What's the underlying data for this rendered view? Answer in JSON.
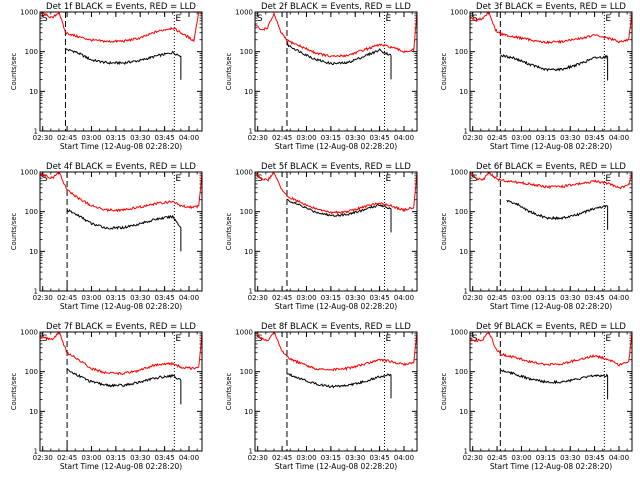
{
  "figure": {
    "title_suffix": " BLACK = Events, RED = LLD",
    "xlabel": "Start Time (12-Aug-08 02:28:20)",
    "ylabel": "Counts/sec",
    "x_tick_labels": [
      "02:30",
      "02:45",
      "03:00",
      "03:15",
      "03:30",
      "03:45",
      "04:00"
    ],
    "y_tick_labels": [
      "1",
      "10",
      "100",
      "1000"
    ],
    "markers": {
      "start": "S",
      "end": "E"
    },
    "colors": {
      "events": "#000000",
      "lld": "#ff0000",
      "axes": "#000000"
    }
  },
  "chart_data": [
    {
      "type": "line",
      "title": "Det 1f",
      "x_range": [
        "02:28:20",
        "04:08:00"
      ],
      "ylim": [
        1,
        1000
      ],
      "y_scale": "log",
      "dashed_line_at": "02:44",
      "dotted_line_at": "03:51",
      "series": [
        {
          "name": "BLACK = Events",
          "x": [
            "02:44",
            "02:50",
            "03:00",
            "03:10",
            "03:20",
            "03:30",
            "03:40",
            "03:50",
            "03:55"
          ],
          "y": [
            115,
            100,
            62,
            52,
            52,
            60,
            78,
            95,
            78
          ]
        },
        {
          "name": "RED = LLD",
          "x": [
            "02:28",
            "02:32",
            "02:36",
            "02:40",
            "02:44",
            "02:50",
            "03:00",
            "03:10",
            "03:20",
            "03:30",
            "03:40",
            "03:50",
            "03:55",
            "04:03",
            "04:06",
            "04:08"
          ],
          "y": [
            1000,
            850,
            700,
            1000,
            300,
            250,
            195,
            180,
            185,
            220,
            320,
            400,
            300,
            190,
            1000,
            1000
          ]
        }
      ]
    },
    {
      "type": "line",
      "title": "Det 2f",
      "x_range": [
        "02:28:20",
        "04:08:00"
      ],
      "ylim": [
        1,
        1000
      ],
      "y_scale": "log",
      "dashed_line_at": "02:48",
      "dotted_line_at": "03:48",
      "series": [
        {
          "name": "BLACK = Events",
          "x": [
            "02:48",
            "02:55",
            "03:05",
            "03:15",
            "03:25",
            "03:35",
            "03:45",
            "03:52"
          ],
          "y": [
            150,
            105,
            65,
            50,
            52,
            75,
            110,
            80
          ]
        },
        {
          "name": "RED = LLD",
          "x": [
            "02:28",
            "02:32",
            "02:36",
            "02:40",
            "02:44",
            "02:48",
            "02:55",
            "03:05",
            "03:15",
            "03:25",
            "03:35",
            "03:45",
            "03:52",
            "04:00",
            "04:06",
            "04:08"
          ],
          "y": [
            500,
            350,
            400,
            900,
            320,
            190,
            145,
            95,
            75,
            80,
            110,
            150,
            130,
            100,
            110,
            1000
          ]
        }
      ]
    },
    {
      "type": "line",
      "title": "Det 3f",
      "x_range": [
        "02:28:20",
        "04:08:00"
      ],
      "ylim": [
        1,
        1000
      ],
      "y_scale": "log",
      "dashed_line_at": "02:47",
      "dotted_line_at": "03:51",
      "series": [
        {
          "name": "BLACK = Events",
          "x": [
            "02:47",
            "02:55",
            "03:05",
            "03:15",
            "03:25",
            "03:35",
            "03:45",
            "03:53"
          ],
          "y": [
            80,
            70,
            48,
            35,
            36,
            48,
            70,
            75
          ]
        },
        {
          "name": "RED = LLD",
          "x": [
            "02:28",
            "02:32",
            "02:36",
            "02:40",
            "02:44",
            "02:47",
            "02:55",
            "03:05",
            "03:15",
            "03:25",
            "03:35",
            "03:45",
            "03:53",
            "04:00",
            "04:06",
            "04:08"
          ],
          "y": [
            800,
            600,
            700,
            1000,
            350,
            280,
            240,
            200,
            170,
            180,
            210,
            260,
            220,
            180,
            200,
            1000
          ]
        }
      ]
    },
    {
      "type": "line",
      "title": "Det 4f",
      "x_range": [
        "02:28:20",
        "04:08:00"
      ],
      "ylim": [
        1,
        1000
      ],
      "y_scale": "log",
      "dashed_line_at": "02:45",
      "dotted_line_at": "03:51",
      "series": [
        {
          "name": "BLACK = Events",
          "x": [
            "02:45",
            "02:52",
            "03:00",
            "03:10",
            "03:20",
            "03:30",
            "03:40",
            "03:50",
            "03:55"
          ],
          "y": [
            110,
            80,
            50,
            38,
            40,
            50,
            65,
            75,
            40
          ]
        },
        {
          "name": "RED = LLD",
          "x": [
            "02:28",
            "02:32",
            "02:36",
            "02:40",
            "02:45",
            "02:52",
            "03:00",
            "03:10",
            "03:20",
            "03:30",
            "03:40",
            "03:50",
            "03:55",
            "04:03",
            "04:06",
            "04:08"
          ],
          "y": [
            900,
            800,
            700,
            1000,
            350,
            220,
            140,
            110,
            110,
            130,
            160,
            180,
            140,
            130,
            140,
            1000
          ]
        }
      ]
    },
    {
      "type": "line",
      "title": "Det 5f",
      "x_range": [
        "02:28:20",
        "04:08:00"
      ],
      "ylim": [
        1,
        1000
      ],
      "y_scale": "log",
      "dashed_line_at": "02:48",
      "dotted_line_at": "03:48",
      "series": [
        {
          "name": "BLACK = Events",
          "x": [
            "02:48",
            "02:55",
            "03:05",
            "03:15",
            "03:25",
            "03:35",
            "03:45",
            "03:52"
          ],
          "y": [
            200,
            150,
            100,
            80,
            85,
            110,
            150,
            120
          ]
        },
        {
          "name": "RED = LLD",
          "x": [
            "02:28",
            "02:32",
            "02:36",
            "02:40",
            "02:44",
            "02:48",
            "02:55",
            "03:05",
            "03:15",
            "03:25",
            "03:35",
            "03:45",
            "03:52",
            "04:00",
            "04:06",
            "04:08"
          ],
          "y": [
            1000,
            700,
            600,
            1000,
            400,
            250,
            180,
            120,
            95,
            100,
            130,
            170,
            140,
            110,
            130,
            1000
          ]
        }
      ]
    },
    {
      "type": "line",
      "title": "Det 6f",
      "x_range": [
        "02:28:20",
        "04:08:00"
      ],
      "ylim": [
        1,
        1000
      ],
      "y_scale": "log",
      "dashed_line_at": "02:47",
      "dotted_line_at": "03:51",
      "series": [
        {
          "name": "BLACK = Events",
          "x": [
            "02:51",
            "02:58",
            "03:05",
            "03:15",
            "03:25",
            "03:35",
            "03:45",
            "03:53"
          ],
          "y": [
            190,
            150,
            100,
            70,
            68,
            85,
            120,
            140
          ]
        },
        {
          "name": "RED = LLD",
          "x": [
            "02:28",
            "02:32",
            "02:36",
            "02:40",
            "02:44",
            "02:47",
            "02:55",
            "03:05",
            "03:15",
            "03:25",
            "03:35",
            "03:45",
            "03:53",
            "04:00",
            "04:06",
            "04:08"
          ],
          "y": [
            1000,
            700,
            600,
            1000,
            700,
            620,
            570,
            500,
            420,
            430,
            500,
            580,
            520,
            400,
            450,
            1000
          ]
        }
      ]
    },
    {
      "type": "line",
      "title": "Det 7f",
      "x_range": [
        "02:28:20",
        "04:08:00"
      ],
      "ylim": [
        1,
        1000
      ],
      "y_scale": "log",
      "dashed_line_at": "02:45",
      "dotted_line_at": "03:51",
      "series": [
        {
          "name": "BLACK = Events",
          "x": [
            "02:45",
            "02:52",
            "03:00",
            "03:10",
            "03:20",
            "03:30",
            "03:40",
            "03:50",
            "03:55"
          ],
          "y": [
            110,
            80,
            55,
            45,
            45,
            55,
            70,
            80,
            60
          ]
        },
        {
          "name": "RED = LLD",
          "x": [
            "02:28",
            "02:32",
            "02:36",
            "02:40",
            "02:45",
            "02:52",
            "03:00",
            "03:10",
            "03:20",
            "03:30",
            "03:40",
            "03:50",
            "03:55",
            "04:03",
            "04:06",
            "04:08"
          ],
          "y": [
            800,
            700,
            650,
            1000,
            300,
            200,
            120,
            90,
            90,
            110,
            150,
            160,
            130,
            120,
            130,
            1000
          ]
        }
      ]
    },
    {
      "type": "line",
      "title": "Det 8f",
      "x_range": [
        "02:28:20",
        "04:08:00"
      ],
      "ylim": [
        1,
        1000
      ],
      "y_scale": "log",
      "dashed_line_at": "02:48",
      "dotted_line_at": "03:48",
      "series": [
        {
          "name": "BLACK = Events",
          "x": [
            "02:48",
            "02:55",
            "03:05",
            "03:15",
            "03:25",
            "03:35",
            "03:45",
            "03:52"
          ],
          "y": [
            90,
            70,
            50,
            42,
            45,
            55,
            75,
            85
          ]
        },
        {
          "name": "RED = LLD",
          "x": [
            "02:28",
            "02:32",
            "02:36",
            "02:40",
            "02:44",
            "02:48",
            "02:55",
            "03:05",
            "03:15",
            "03:25",
            "03:35",
            "03:45",
            "03:52",
            "04:00",
            "04:06",
            "04:08"
          ],
          "y": [
            1000,
            700,
            600,
            1000,
            400,
            230,
            170,
            120,
            110,
            120,
            150,
            200,
            180,
            150,
            170,
            1000
          ]
        }
      ]
    },
    {
      "type": "line",
      "title": "Det 9f",
      "x_range": [
        "02:28:20",
        "04:08:00"
      ],
      "ylim": [
        1,
        1000
      ],
      "y_scale": "log",
      "dashed_line_at": "02:47",
      "dotted_line_at": "03:51",
      "series": [
        {
          "name": "BLACK = Events",
          "x": [
            "02:47",
            "02:55",
            "03:05",
            "03:15",
            "03:25",
            "03:35",
            "03:45",
            "03:53"
          ],
          "y": [
            110,
            90,
            65,
            55,
            55,
            65,
            80,
            80
          ]
        },
        {
          "name": "RED = LLD",
          "x": [
            "02:28",
            "02:32",
            "02:36",
            "02:40",
            "02:44",
            "02:47",
            "02:55",
            "03:05",
            "03:15",
            "03:25",
            "03:35",
            "03:45",
            "03:53",
            "04:00",
            "04:06",
            "04:08"
          ],
          "y": [
            700,
            600,
            650,
            1000,
            400,
            280,
            230,
            180,
            150,
            160,
            200,
            250,
            210,
            150,
            180,
            1000
          ]
        }
      ]
    }
  ]
}
